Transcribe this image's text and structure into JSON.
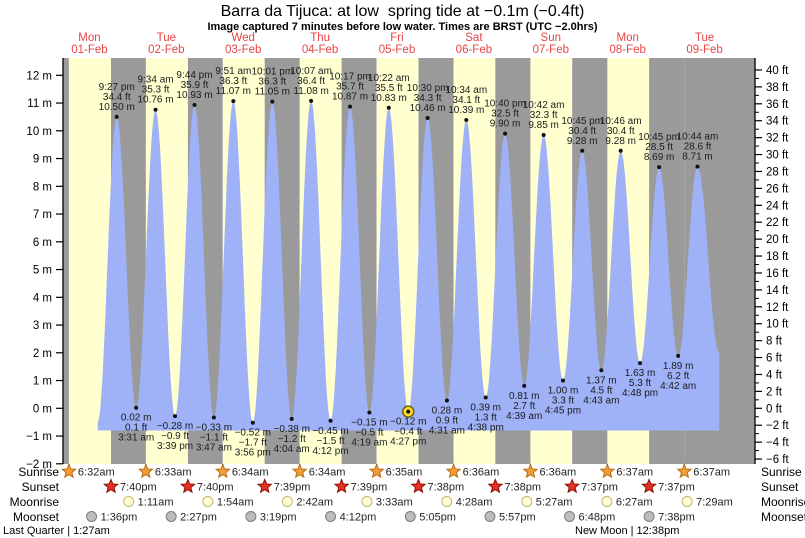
{
  "title": "Barra da Tijuca: at low  spring tide at −0.1m (−0.4ft)",
  "subtitle": "Image captured 7 minutes before low water. Times are BRST (UTC −2.0hrs)",
  "chart_data": {
    "type": "area",
    "title": "Barra da Tijuca: at low  spring tide at −0.1m (−0.4ft)",
    "days": [
      {
        "dow": "Mon",
        "date": "01-Feb"
      },
      {
        "dow": "Tue",
        "date": "02-Feb"
      },
      {
        "dow": "Wed",
        "date": "03-Feb"
      },
      {
        "dow": "Thu",
        "date": "04-Feb"
      },
      {
        "dow": "Fri",
        "date": "05-Feb"
      },
      {
        "dow": "Sat",
        "date": "06-Feb"
      },
      {
        "dow": "Sun",
        "date": "07-Feb"
      },
      {
        "dow": "Mon",
        "date": "08-Feb"
      },
      {
        "dow": "Tue",
        "date": "09-Feb"
      }
    ],
    "ylim_m": [
      -2,
      12.6
    ],
    "baseline_m": -0.8,
    "y_axis_m": {
      "tick_values": [
        12,
        11,
        10,
        9,
        8,
        7,
        6,
        5,
        4,
        3,
        2,
        1,
        0,
        -1,
        -2
      ],
      "tick_labels": [
        "12 m",
        "11 m",
        "10 m",
        "9 m",
        "8 m",
        "7 m",
        "6 m",
        "5 m",
        "4 m",
        "3 m",
        "2 m",
        "1 m",
        "0 m",
        "−1 m",
        "−2 m"
      ]
    },
    "y_axis_ft": {
      "tick_values": [
        40,
        38,
        36,
        34,
        32,
        30,
        28,
        26,
        24,
        22,
        20,
        18,
        16,
        14,
        12,
        10,
        8,
        6,
        4,
        2,
        0,
        -2,
        -4,
        -6
      ],
      "tick_labels": [
        "40 ft",
        "38 ft",
        "36 ft",
        "34 ft",
        "32 ft",
        "30 ft",
        "28 ft",
        "26 ft",
        "24 ft",
        "22 ft",
        "20 ft",
        "18 ft",
        "16 ft",
        "14 ft",
        "12 ft",
        "10 ft",
        "8 ft",
        "6 ft",
        "4 ft",
        "2 ft",
        "0 ft",
        "−2 ft",
        "−4 ft",
        "−6 ft"
      ]
    },
    "tides": [
      {
        "type": "high",
        "t": 21.45,
        "time": "9:27 pm",
        "ft": "34.4 ft",
        "m": "10.50 m",
        "height_m": 10.5
      },
      {
        "type": "low",
        "t": 27.52,
        "time": "3:31 am",
        "ft": "0.1 ft",
        "m": "0.02 m",
        "height_m": 0.02
      },
      {
        "type": "high",
        "t": 33.57,
        "time": "9:34 am",
        "ft": "35.3 ft",
        "m": "10.76 m",
        "height_m": 10.76
      },
      {
        "type": "low",
        "t": 39.65,
        "time": "3:39 pm",
        "ft": "−0.9 ft",
        "m": "−0.28 m",
        "height_m": -0.28
      },
      {
        "type": "high",
        "t": 45.73,
        "time": "9:44 pm",
        "ft": "35.9 ft",
        "m": "10.93 m",
        "height_m": 10.93
      },
      {
        "type": "low",
        "t": 51.78,
        "time": "3:47 am",
        "ft": "−1.1 ft",
        "m": "−0.33 m",
        "height_m": -0.33
      },
      {
        "type": "high",
        "t": 57.85,
        "time": "9:51 am",
        "ft": "36.3 ft",
        "m": "11.07 m",
        "height_m": 11.07
      },
      {
        "type": "low",
        "t": 63.93,
        "time": "3:56 pm",
        "ft": "−1.7 ft",
        "m": "−0.52 m",
        "height_m": -0.52
      },
      {
        "type": "high",
        "t": 70.02,
        "time": "10:01 pm",
        "ft": "36.3 ft",
        "m": "11.05 m",
        "height_m": 11.05
      },
      {
        "type": "low",
        "t": 76.07,
        "time": "4:04 am",
        "ft": "−1.2 ft",
        "m": "−0.38 m",
        "height_m": -0.38
      },
      {
        "type": "high",
        "t": 82.12,
        "time": "10:07 am",
        "ft": "36.4 ft",
        "m": "11.08 m",
        "height_m": 11.08
      },
      {
        "type": "low",
        "t": 88.2,
        "time": "4:12 pm",
        "ft": "−1.5 ft",
        "m": "−0.45 m",
        "height_m": -0.45
      },
      {
        "type": "high",
        "t": 94.28,
        "time": "10:17 pm",
        "ft": "35.7 ft",
        "m": "10.87 m",
        "height_m": 10.87
      },
      {
        "type": "low",
        "t": 100.32,
        "time": "4:19 am",
        "ft": "−0.5 ft",
        "m": "−0.15 m",
        "height_m": -0.15
      },
      {
        "type": "high",
        "t": 106.37,
        "time": "10:22 am",
        "ft": "35.5 ft",
        "m": "10.83 m",
        "height_m": 10.83
      },
      {
        "type": "low",
        "t": 112.45,
        "time": "4:27 pm",
        "ft": "−0.4 ft",
        "m": "−0.12 m",
        "height_m": -0.12,
        "current": true
      },
      {
        "type": "high",
        "t": 118.5,
        "time": "10:30 pm",
        "ft": "34.3 ft",
        "m": "10.46 m",
        "height_m": 10.46
      },
      {
        "type": "low",
        "t": 124.52,
        "time": "4:31 am",
        "ft": "0.9 ft",
        "m": "0.28 m",
        "height_m": 0.28
      },
      {
        "type": "high",
        "t": 130.57,
        "time": "10:34 am",
        "ft": "34.1 ft",
        "m": "10.39 m",
        "height_m": 10.39
      },
      {
        "type": "low",
        "t": 136.63,
        "time": "4:38 pm",
        "ft": "1.3 ft",
        "m": "0.39 m",
        "height_m": 0.39
      },
      {
        "type": "high",
        "t": 142.67,
        "time": "10:40 pm",
        "ft": "32.5 ft",
        "m": "9.90 m",
        "height_m": 9.9
      },
      {
        "type": "low",
        "t": 148.65,
        "time": "4:39 am",
        "ft": "2.7 ft",
        "m": "0.81 m",
        "height_m": 0.81
      },
      {
        "type": "high",
        "t": 154.7,
        "time": "10:42 am",
        "ft": "32.3 ft",
        "m": "9.85 m",
        "height_m": 9.85
      },
      {
        "type": "low",
        "t": 160.75,
        "time": "4:45 pm",
        "ft": "3.3 ft",
        "m": "1.00 m",
        "height_m": 1.0
      },
      {
        "type": "high",
        "t": 166.75,
        "time": "10:45 pm",
        "ft": "30.4 ft",
        "m": "9.28 m",
        "height_m": 9.28
      },
      {
        "type": "low",
        "t": 172.72,
        "time": "4:43 am",
        "ft": "4.5 ft",
        "m": "1.37 m",
        "height_m": 1.37
      },
      {
        "type": "high",
        "t": 178.77,
        "time": "10:46 am",
        "ft": "30.4 ft",
        "m": "9.28 m",
        "height_m": 9.28
      },
      {
        "type": "low",
        "t": 184.8,
        "time": "4:48 pm",
        "ft": "5.3 ft",
        "m": "1.63 m",
        "height_m": 1.63
      },
      {
        "type": "high",
        "t": 190.75,
        "time": "10:45 pm",
        "ft": "28.5 ft",
        "m": "8.69 m",
        "height_m": 8.69
      },
      {
        "type": "low",
        "t": 196.7,
        "time": "4:42 am",
        "ft": "6.2 ft",
        "m": "1.89 m",
        "height_m": 1.89
      },
      {
        "type": "high",
        "t": 202.73,
        "time": "10:44 am",
        "ft": "28.6 ft",
        "m": "8.71 m",
        "height_m": 8.71
      }
    ],
    "edge_points": {
      "start": {
        "t": 15.5,
        "height_m": -0.5
      },
      "end": {
        "t": 209.5,
        "height_m": 2.0
      }
    },
    "colors": {
      "day_stripe": "#ffffd0",
      "night_stripe": "#9a9a9a",
      "water": "#9fb1f7",
      "day_label": "#e64545",
      "point": "#111111",
      "current_marker_fill": "#ffd930",
      "current_marker_ring": "#6f6400"
    }
  },
  "astro": {
    "rows": [
      {
        "label": "Sunrise",
        "icon": "sunrise-star",
        "fill": "#f29d38",
        "stroke": "#b96f12",
        "events": [
          {
            "day": 0,
            "time": "6:32am"
          },
          {
            "day": 1,
            "time": "6:33am"
          },
          {
            "day": 2,
            "time": "6:34am"
          },
          {
            "day": 3,
            "time": "6:34am"
          },
          {
            "day": 4,
            "time": "6:35am"
          },
          {
            "day": 5,
            "time": "6:36am"
          },
          {
            "day": 6,
            "time": "6:36am"
          },
          {
            "day": 7,
            "time": "6:37am"
          },
          {
            "day": 8,
            "time": "6:37am"
          }
        ]
      },
      {
        "label": "Sunset",
        "icon": "sunset-star",
        "fill": "#e63223",
        "stroke": "#8f0d05",
        "events": [
          {
            "day": 0,
            "time": "7:40pm"
          },
          {
            "day": 1,
            "time": "7:40pm"
          },
          {
            "day": 2,
            "time": "7:39pm"
          },
          {
            "day": 3,
            "time": "7:39pm"
          },
          {
            "day": 4,
            "time": "7:38pm"
          },
          {
            "day": 5,
            "time": "7:38pm"
          },
          {
            "day": 6,
            "time": "7:37pm"
          },
          {
            "day": 7,
            "time": "7:37pm"
          }
        ]
      },
      {
        "label": "Moonrise",
        "icon": "moonrise-circle",
        "fill": "#ffffcf",
        "stroke": "#c3b37c",
        "events": [
          {
            "day": 1,
            "time": "1:11am"
          },
          {
            "day": 2,
            "time": "1:54am"
          },
          {
            "day": 3,
            "time": "2:42am"
          },
          {
            "day": 4,
            "time": "3:33am"
          },
          {
            "day": 5,
            "time": "4:28am"
          },
          {
            "day": 6,
            "time": "5:27am"
          },
          {
            "day": 7,
            "time": "6:27am"
          },
          {
            "day": 8,
            "time": "7:29am"
          }
        ]
      },
      {
        "label": "Moonset",
        "icon": "moonset-circle",
        "fill": "#bdbdbd",
        "stroke": "#7d7d7d",
        "events": [
          {
            "day": 0,
            "time": "1:36pm"
          },
          {
            "day": 1,
            "time": "2:27pm"
          },
          {
            "day": 2,
            "time": "3:19pm"
          },
          {
            "day": 3,
            "time": "4:12pm"
          },
          {
            "day": 4,
            "time": "5:05pm"
          },
          {
            "day": 5,
            "time": "5:57pm"
          },
          {
            "day": 6,
            "time": "6:48pm"
          },
          {
            "day": 7,
            "time": "7:38pm"
          }
        ]
      }
    ],
    "captions": {
      "left": "Last Quarter | 1:27am",
      "right": "New Moon | 12:38pm"
    }
  }
}
